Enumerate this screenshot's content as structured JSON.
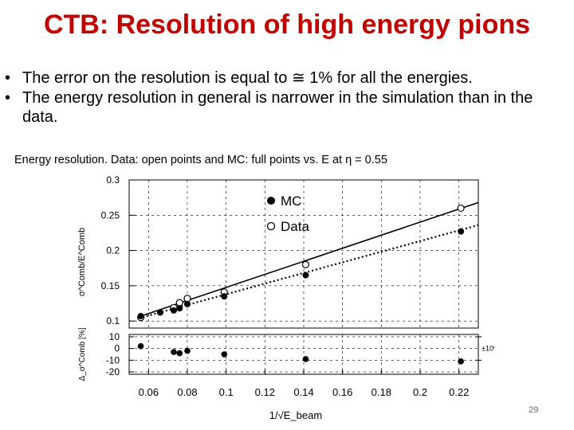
{
  "slide": {
    "title": "CTB: Resolution of high energy pions",
    "bullets": [
      "The error on the resolution  is equal to ≅ 1% for all the energies.",
      "The energy resolution in general is narrower in the simulation than in the data."
    ],
    "bullet_symbol": "•",
    "caption": "Energy resolution. Data:  open points and MC: full points  vs. E at η  = 0.55",
    "page_number": "29"
  },
  "chart_data": [
    {
      "type": "scatter",
      "xlabel": "1/√E_beam",
      "ylabel": "σ^Comb/E^Comb",
      "xlim": [
        0.05,
        0.23
      ],
      "ylim": [
        0.09,
        0.3
      ],
      "x_ticks": [
        "0.06",
        "0.08",
        "0.1",
        "0.12",
        "0.14",
        "0.16",
        "0.18",
        "0.2",
        "0.22"
      ],
      "y_ticks": [
        "0.1",
        "0.15",
        "0.2",
        "0.25",
        "0.3"
      ],
      "legend_position": "top-right",
      "series": [
        {
          "name": "MC",
          "marker": "filled-circle",
          "x": [
            0.056,
            0.066,
            0.073,
            0.076,
            0.08,
            0.099,
            0.141,
            0.221
          ],
          "y": [
            0.107,
            0.112,
            0.115,
            0.118,
            0.124,
            0.135,
            0.165,
            0.227
          ],
          "fit": [
            [
              0.055,
              0.104
            ],
            [
              0.23,
              0.236
            ]
          ]
        },
        {
          "name": "Data",
          "marker": "open-circle",
          "x": [
            0.056,
            0.073,
            0.076,
            0.08,
            0.099,
            0.141,
            0.221
          ],
          "y": [
            0.105,
            0.119,
            0.126,
            0.132,
            0.141,
            0.18,
            0.26
          ],
          "fit": [
            [
              0.055,
              0.106
            ],
            [
              0.23,
              0.268
            ]
          ]
        }
      ]
    },
    {
      "type": "scatter",
      "xlabel": "1/√E_beam",
      "ylabel": "Δ_σ^Comb [%]",
      "xlim": [
        0.05,
        0.23
      ],
      "ylim": [
        -22,
        12
      ],
      "y_ticks": [
        "10",
        "0",
        "-10",
        "-20"
      ],
      "band_label": "±10%",
      "band": [
        -10,
        10
      ],
      "series": [
        {
          "name": "",
          "marker": "filled-circle",
          "x": [
            0.056,
            0.073,
            0.076,
            0.08,
            0.099,
            0.141,
            0.221
          ],
          "y": [
            2,
            -3,
            -4,
            -2,
            -5,
            -9,
            -11
          ]
        }
      ]
    }
  ]
}
